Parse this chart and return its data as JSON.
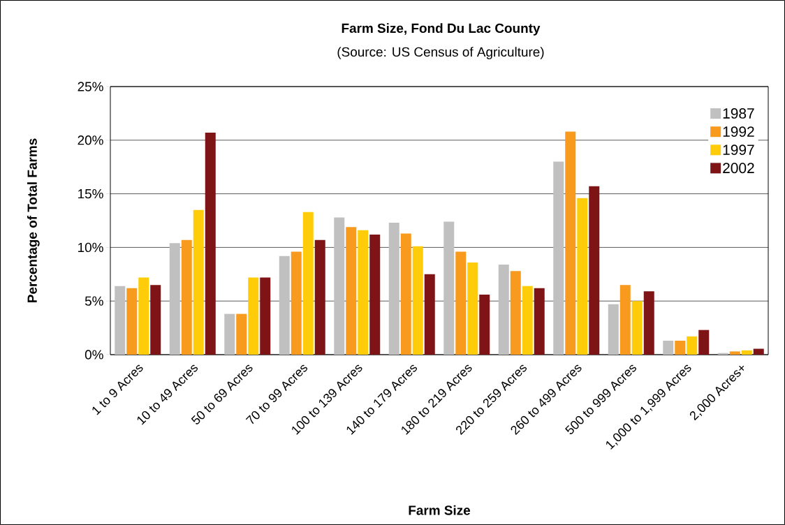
{
  "chart_data": {
    "type": "bar",
    "title": "Farm Size, Fond Du Lac County",
    "subtitle": "(Source: US Census of Agriculture)",
    "xlabel": "Farm Size",
    "ylabel": "Percentage of Total Farms",
    "categories": [
      "1 to 9 Acres",
      "10 to 49 Acres",
      "50 to 69 Acres",
      "70 to 99 Acres",
      "100 to 139 Acres",
      "140 to 179 Acres",
      "180 to 219 Acres",
      "220 to 259 Acres",
      "260 to 499 Acres",
      "500 to 999 Acres",
      "1,000 to 1,999 Acres",
      "2,000 Acres+"
    ],
    "series": [
      {
        "name": "1987",
        "color": "#c0c0c0",
        "values": [
          6.4,
          10.4,
          3.8,
          9.2,
          12.8,
          12.3,
          12.4,
          8.4,
          18.0,
          4.7,
          1.3,
          0.15
        ]
      },
      {
        "name": "1992",
        "color": "#f79a1e",
        "values": [
          6.2,
          10.7,
          3.8,
          9.6,
          11.9,
          11.3,
          9.6,
          7.8,
          20.8,
          6.5,
          1.3,
          0.3
        ]
      },
      {
        "name": "1997",
        "color": "#fecc08",
        "values": [
          7.2,
          13.5,
          7.2,
          13.3,
          11.6,
          10.1,
          8.6,
          6.4,
          14.6,
          5.0,
          1.7,
          0.4
        ]
      },
      {
        "name": "2002",
        "color": "#7f1416",
        "values": [
          6.5,
          20.7,
          7.2,
          10.7,
          11.2,
          7.5,
          5.6,
          6.2,
          15.7,
          5.9,
          2.3,
          0.55
        ]
      }
    ],
    "ylim": [
      0,
      25
    ],
    "yticks": [
      {
        "value": 0,
        "label": "0%"
      },
      {
        "value": 5,
        "label": "5%"
      },
      {
        "value": 10,
        "label": "10%"
      },
      {
        "value": 15,
        "label": "15%"
      },
      {
        "value": 20,
        "label": "20%"
      },
      {
        "value": 25,
        "label": "25%"
      }
    ],
    "grid": "y",
    "legend": "top right"
  }
}
